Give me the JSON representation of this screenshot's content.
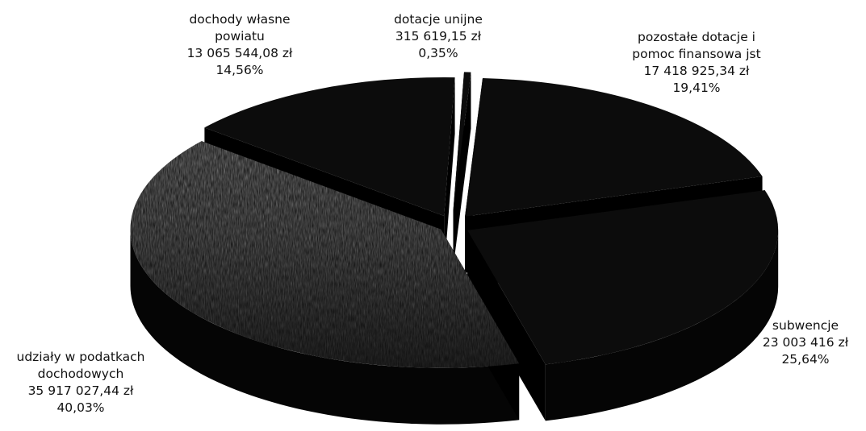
{
  "chart_data": {
    "type": "pie",
    "title": "",
    "three_d": true,
    "exploded": true,
    "slices": [
      {
        "name": "dotacje unijne",
        "value": 315619.15,
        "value_label": "315 619,15 zł",
        "percent": 0.35,
        "percent_label": "0,35%"
      },
      {
        "name": "pozostałe dotacje i pomoc finansowa jst",
        "value": 17418925.34,
        "value_label": "17 418 925,34 zł",
        "percent": 19.41,
        "percent_label": "19,41%"
      },
      {
        "name": "subwencje",
        "value": 23003416,
        "value_label": "23 003 416 zł",
        "percent": 25.64,
        "percent_label": "25,64%"
      },
      {
        "name": "udziały w podatkach dochodowych",
        "value": 35917027.44,
        "value_label": "35 917 027,44 zł",
        "percent": 40.03,
        "percent_label": "40,03%"
      },
      {
        "name": "dochody własne powiatu",
        "value": 13065544.08,
        "value_label": "13 065 544,08 zł",
        "percent": 14.56,
        "percent_label": "14,56%"
      }
    ]
  },
  "labels": {
    "unijne": {
      "line1": "dotacje unijne",
      "value": "315 619,15 zł",
      "pct": "0,35%"
    },
    "pozostale": {
      "line1": "pozostałe dotacje i",
      "line2": "pomoc finansowa jst",
      "value": "17 418 925,34 zł",
      "pct": "19,41%"
    },
    "subwencje": {
      "line1": "subwencje",
      "value": "23 003 416 zł",
      "pct": "25,64%"
    },
    "udzialy": {
      "line1": "udziały w podatkach",
      "line2": "dochodowych",
      "value": "35 917 027,44 zł",
      "pct": "40,03%"
    },
    "wlasne": {
      "line1": "dochody własne",
      "line2": "powiatu",
      "value": "13 065 544,08 zł",
      "pct": "14,56%"
    }
  },
  "colors": {
    "slice_dark": "#0c0c0c",
    "slice_side": "#050505",
    "slice_speckle_light": "#d8d8d8",
    "background": "#ffffff"
  }
}
